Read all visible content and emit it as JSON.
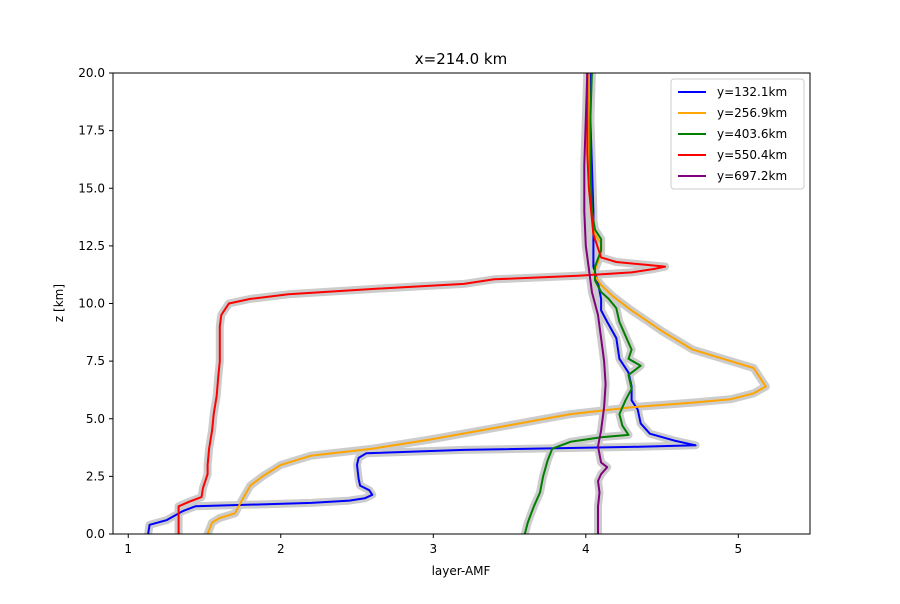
{
  "chart_data": {
    "type": "line",
    "title": "x=214.0 km",
    "xlabel": "layer-AMF",
    "ylabel": "z [km]",
    "xlim": [
      0.9,
      5.47
    ],
    "ylim": [
      0,
      20
    ],
    "xticks": [
      1,
      2,
      3,
      4,
      5
    ],
    "yticks": [
      0.0,
      2.5,
      5.0,
      7.5,
      10.0,
      12.5,
      15.0,
      17.5,
      20.0
    ],
    "grid": false,
    "legend_position": "upper right",
    "band_color": "#cccccc",
    "series": [
      {
        "name": "y=132.1km",
        "color": "#0000ff",
        "points": [
          [
            1.13,
            0
          ],
          [
            1.14,
            0.4
          ],
          [
            1.25,
            0.6
          ],
          [
            1.36,
            1.0
          ],
          [
            1.44,
            1.2
          ],
          [
            2.2,
            1.35
          ],
          [
            2.45,
            1.45
          ],
          [
            2.55,
            1.55
          ],
          [
            2.6,
            1.7
          ],
          [
            2.58,
            1.9
          ],
          [
            2.52,
            2.1
          ],
          [
            2.51,
            2.4
          ],
          [
            2.5,
            3.0
          ],
          [
            2.51,
            3.3
          ],
          [
            2.56,
            3.5
          ],
          [
            3.2,
            3.65
          ],
          [
            4.3,
            3.78
          ],
          [
            4.72,
            3.85
          ],
          [
            4.58,
            4.05
          ],
          [
            4.42,
            4.35
          ],
          [
            4.36,
            4.8
          ],
          [
            4.34,
            5.4
          ],
          [
            4.3,
            5.8
          ],
          [
            4.3,
            6.4
          ],
          [
            4.28,
            7.0
          ],
          [
            4.22,
            7.6
          ],
          [
            4.2,
            8.5
          ],
          [
            4.14,
            9.2
          ],
          [
            4.1,
            9.7
          ],
          [
            4.1,
            10.2
          ],
          [
            4.08,
            10.9
          ],
          [
            4.05,
            11.6
          ],
          [
            4.05,
            12.5
          ],
          [
            4.05,
            14.0
          ],
          [
            4.04,
            16.0
          ],
          [
            4.03,
            18.0
          ],
          [
            4.03,
            20.0
          ]
        ]
      },
      {
        "name": "y=256.9km",
        "color": "#ffa500",
        "points": [
          [
            1.52,
            0
          ],
          [
            1.55,
            0.5
          ],
          [
            1.6,
            0.7
          ],
          [
            1.7,
            0.9
          ],
          [
            1.74,
            1.4
          ],
          [
            1.8,
            2.1
          ],
          [
            1.88,
            2.5
          ],
          [
            2.0,
            3.0
          ],
          [
            2.2,
            3.4
          ],
          [
            2.6,
            3.7
          ],
          [
            2.98,
            4.1
          ],
          [
            3.4,
            4.6
          ],
          [
            3.9,
            5.2
          ],
          [
            4.3,
            5.5
          ],
          [
            4.7,
            5.7
          ],
          [
            4.95,
            5.85
          ],
          [
            5.1,
            6.1
          ],
          [
            5.18,
            6.4
          ],
          [
            5.14,
            6.8
          ],
          [
            5.1,
            7.2
          ],
          [
            4.9,
            7.6
          ],
          [
            4.7,
            8.0
          ],
          [
            4.5,
            8.8
          ],
          [
            4.3,
            9.7
          ],
          [
            4.18,
            10.3
          ],
          [
            4.1,
            10.8
          ],
          [
            4.05,
            11.3
          ],
          [
            4.08,
            11.8
          ],
          [
            4.1,
            12.2
          ],
          [
            4.1,
            12.6
          ],
          [
            4.06,
            13.0
          ],
          [
            4.04,
            14.0
          ],
          [
            4.02,
            16.0
          ],
          [
            4.02,
            18.0
          ],
          [
            4.02,
            20.0
          ]
        ]
      },
      {
        "name": "y=403.6km",
        "color": "#008000",
        "points": [
          [
            3.6,
            0
          ],
          [
            3.62,
            0.5
          ],
          [
            3.66,
            1.2
          ],
          [
            3.7,
            1.8
          ],
          [
            3.72,
            2.5
          ],
          [
            3.75,
            3.2
          ],
          [
            3.78,
            3.7
          ],
          [
            3.9,
            4.0
          ],
          [
            4.1,
            4.2
          ],
          [
            4.28,
            4.3
          ],
          [
            4.24,
            4.7
          ],
          [
            4.22,
            5.2
          ],
          [
            4.26,
            5.8
          ],
          [
            4.3,
            6.3
          ],
          [
            4.28,
            6.9
          ],
          [
            4.36,
            7.3
          ],
          [
            4.28,
            7.6
          ],
          [
            4.3,
            8.0
          ],
          [
            4.26,
            8.6
          ],
          [
            4.22,
            9.2
          ],
          [
            4.2,
            9.8
          ],
          [
            4.15,
            10.2
          ],
          [
            4.1,
            10.5
          ],
          [
            4.06,
            11.0
          ],
          [
            4.06,
            11.6
          ],
          [
            4.1,
            12.3
          ],
          [
            4.1,
            12.8
          ],
          [
            4.06,
            13.2
          ],
          [
            4.04,
            14.0
          ],
          [
            4.03,
            16.0
          ],
          [
            4.03,
            18.0
          ],
          [
            4.04,
            20.0
          ]
        ]
      },
      {
        "name": "y=550.4km",
        "color": "#ff0000",
        "points": [
          [
            1.33,
            0
          ],
          [
            1.33,
            0.6
          ],
          [
            1.33,
            1.2
          ],
          [
            1.4,
            1.4
          ],
          [
            1.48,
            1.6
          ],
          [
            1.49,
            2.0
          ],
          [
            1.52,
            2.6
          ],
          [
            1.52,
            3.0
          ],
          [
            1.53,
            3.7
          ],
          [
            1.55,
            4.5
          ],
          [
            1.56,
            5.2
          ],
          [
            1.58,
            6.0
          ],
          [
            1.59,
            6.8
          ],
          [
            1.6,
            7.5
          ],
          [
            1.6,
            8.3
          ],
          [
            1.6,
            9.0
          ],
          [
            1.61,
            9.5
          ],
          [
            1.63,
            9.7
          ],
          [
            1.66,
            10.0
          ],
          [
            1.8,
            10.2
          ],
          [
            2.05,
            10.4
          ],
          [
            2.65,
            10.65
          ],
          [
            3.2,
            10.85
          ],
          [
            3.4,
            11.05
          ],
          [
            3.95,
            11.2
          ],
          [
            4.3,
            11.35
          ],
          [
            4.45,
            11.5
          ],
          [
            4.52,
            11.6
          ],
          [
            4.2,
            11.8
          ],
          [
            4.1,
            12.0
          ],
          [
            4.05,
            13.0
          ],
          [
            4.02,
            15.0
          ],
          [
            4.01,
            16.5
          ],
          [
            4.01,
            18.0
          ],
          [
            4.01,
            20.0
          ]
        ]
      },
      {
        "name": "y=697.2km",
        "color": "#800080",
        "points": [
          [
            4.08,
            0
          ],
          [
            4.08,
            0.6
          ],
          [
            4.08,
            1.2
          ],
          [
            4.09,
            1.8
          ],
          [
            4.08,
            2.3
          ],
          [
            4.1,
            2.6
          ],
          [
            4.14,
            2.9
          ],
          [
            4.1,
            3.1
          ],
          [
            4.08,
            3.8
          ],
          [
            4.1,
            4.5
          ],
          [
            4.12,
            5.5
          ],
          [
            4.13,
            6.5
          ],
          [
            4.12,
            7.5
          ],
          [
            4.1,
            8.5
          ],
          [
            4.08,
            9.5
          ],
          [
            4.04,
            10.5
          ],
          [
            4.02,
            11.5
          ],
          [
            4.0,
            12.5
          ],
          [
            3.99,
            14.0
          ],
          [
            3.99,
            16.0
          ],
          [
            4.0,
            18.0
          ],
          [
            4.01,
            20.0
          ]
        ]
      }
    ]
  }
}
